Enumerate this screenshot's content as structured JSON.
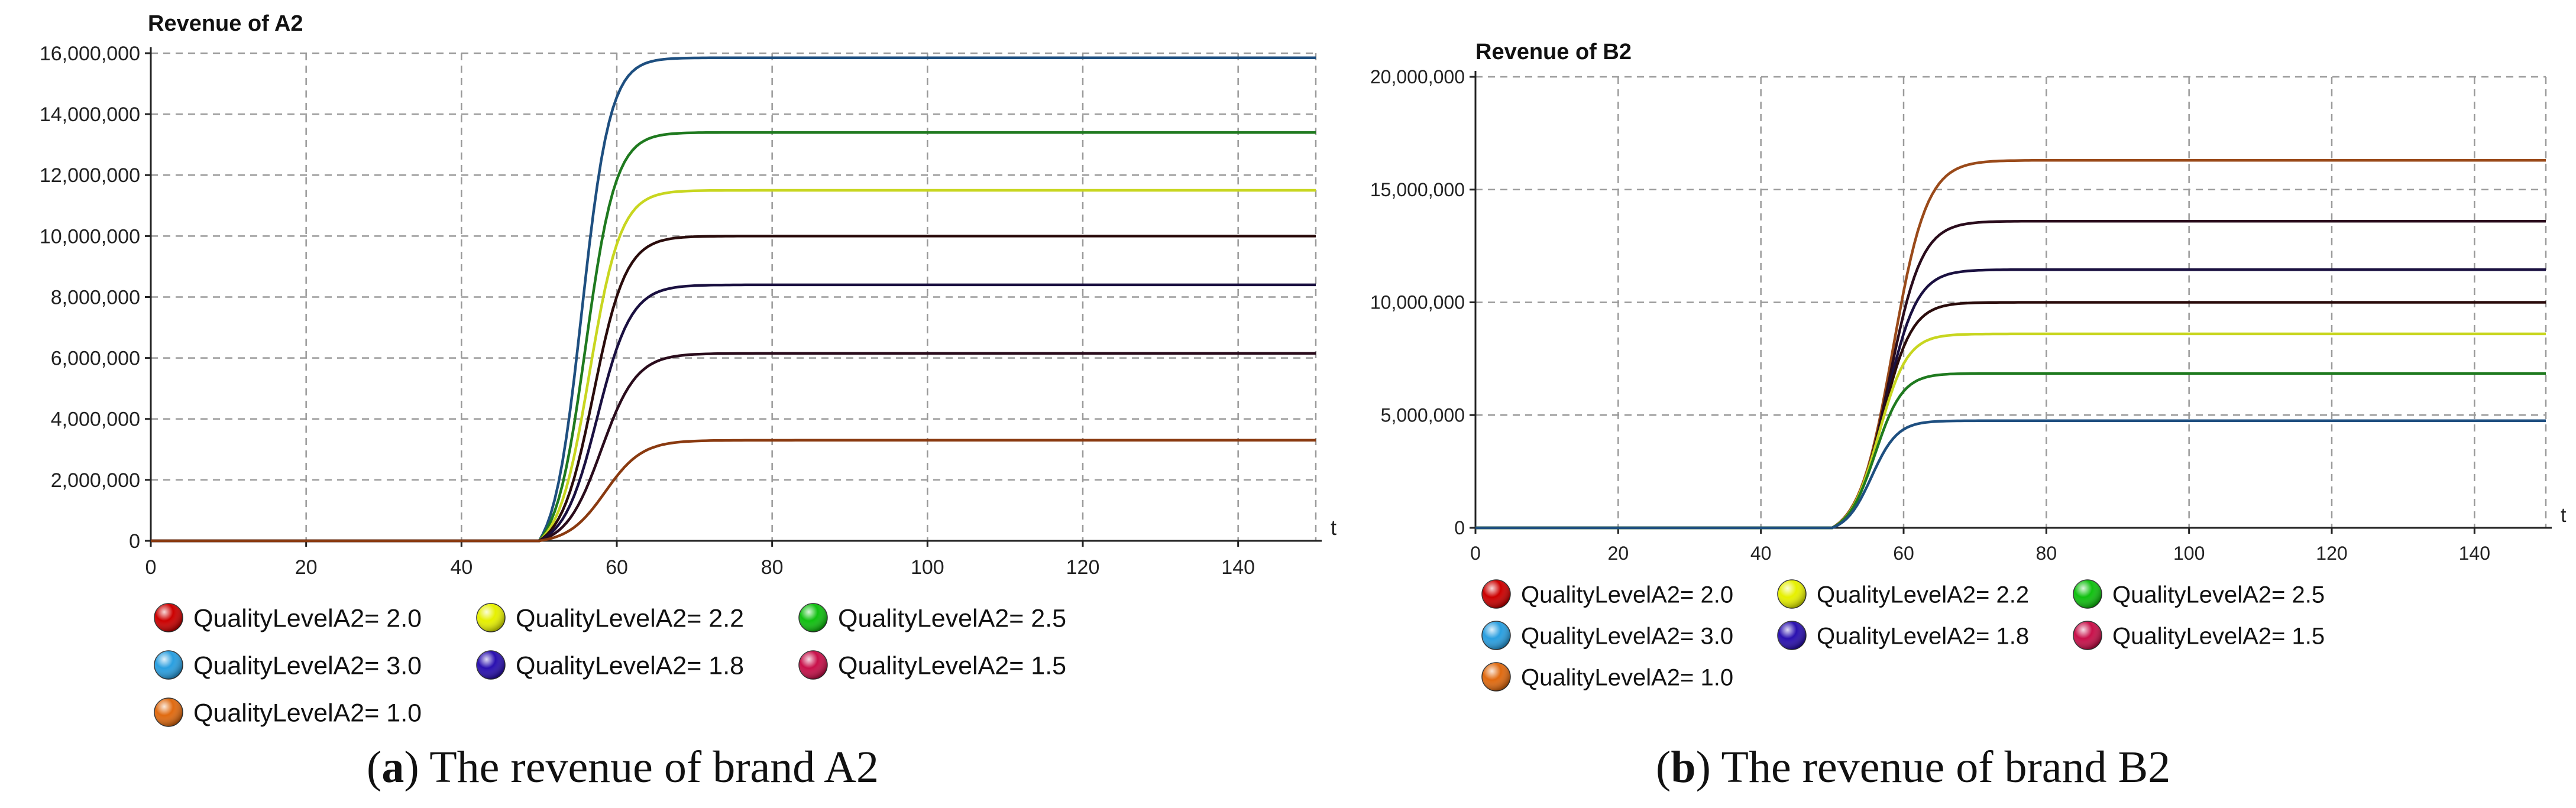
{
  "charts": [
    {
      "id": "a",
      "title": "Revenue of A2",
      "caption_letter": "a",
      "caption_text": "The revenue of brand A2",
      "x_label": "t",
      "x_ticks": [
        "0",
        "20",
        "40",
        "60",
        "80",
        "100",
        "120",
        "140"
      ],
      "y_ticks": [
        "0",
        "2,000,000",
        "4,000,000",
        "6,000,000",
        "8,000,000",
        "10,000,000",
        "12,000,000",
        "14,000,000",
        "16,000,000"
      ]
    },
    {
      "id": "b",
      "title": "Revenue of B2",
      "caption_letter": "b",
      "caption_text": "The revenue of brand B2",
      "x_label": "t",
      "x_ticks": [
        "0",
        "20",
        "40",
        "60",
        "80",
        "100",
        "120",
        "140"
      ],
      "y_ticks": [
        "0",
        "5,000,000",
        "10,000,000",
        "15,000,000",
        "20,000,000"
      ]
    }
  ],
  "legend": [
    {
      "label": "QualityLevelA2= 2.0",
      "color": "#cc0000"
    },
    {
      "label": "QualityLevelA2= 2.2",
      "color": "#e6f000"
    },
    {
      "label": "QualityLevelA2= 2.5",
      "color": "#10c010"
    },
    {
      "label": "QualityLevelA2= 3.0",
      "color": "#2a9fe0"
    },
    {
      "label": "QualityLevelA2= 1.8",
      "color": "#2a10b0"
    },
    {
      "label": "QualityLevelA2= 1.5",
      "color": "#c8104a"
    },
    {
      "label": "QualityLevelA2= 1.0",
      "color": "#e06a10"
    }
  ],
  "chart_data": [
    {
      "type": "line",
      "title": "Revenue of A2",
      "xlabel": "t",
      "ylabel": "",
      "xlim": [
        0,
        150
      ],
      "ylim": [
        0,
        16000000
      ],
      "grid": true,
      "legend_position": "bottom",
      "model": "sigmoid",
      "series": [
        {
          "name": "QualityLevelA2= 3.0",
          "color": "#1e4f80",
          "plateau": 15850000,
          "t_half": 55.5,
          "k": 0.55
        },
        {
          "name": "QualityLevelA2= 2.5",
          "color": "#1f7a1f",
          "plateau": 13400000,
          "t_half": 56.0,
          "k": 0.52
        },
        {
          "name": "QualityLevelA2= 2.2",
          "color": "#c8d620",
          "plateau": 11500000,
          "t_half": 56.5,
          "k": 0.5
        },
        {
          "name": "QualityLevelA2= 2.0",
          "color": "#2a0c0c",
          "plateau": 10000000,
          "t_half": 57.0,
          "k": 0.48
        },
        {
          "name": "QualityLevelA2= 1.8",
          "color": "#1a1040",
          "plateau": 8400000,
          "t_half": 57.5,
          "k": 0.46
        },
        {
          "name": "QualityLevelA2= 1.5",
          "color": "#2a0c1c",
          "plateau": 6150000,
          "t_half": 58.0,
          "k": 0.44
        },
        {
          "name": "QualityLevelA2= 1.0",
          "color": "#8a3a10",
          "plateau": 3300000,
          "t_half": 58.5,
          "k": 0.42
        }
      ]
    },
    {
      "type": "line",
      "title": "Revenue of B2",
      "xlabel": "t",
      "ylabel": "",
      "xlim": [
        0,
        150
      ],
      "ylim": [
        0,
        20000000
      ],
      "grid": true,
      "legend_position": "bottom",
      "model": "sigmoid",
      "series": [
        {
          "name": "QualityLevelA2= 1.0",
          "color": "#9a4a1a",
          "plateau": 16300000,
          "t_half": 58.5,
          "k": 0.42
        },
        {
          "name": "QualityLevelA2= 1.5",
          "color": "#2a0c1c",
          "plateau": 13600000,
          "t_half": 58.0,
          "k": 0.44
        },
        {
          "name": "QualityLevelA2= 1.8",
          "color": "#1a1040",
          "plateau": 11450000,
          "t_half": 57.5,
          "k": 0.46
        },
        {
          "name": "QualityLevelA2= 2.0",
          "color": "#2a0c0c",
          "plateau": 10000000,
          "t_half": 57.0,
          "k": 0.48
        },
        {
          "name": "QualityLevelA2= 2.2",
          "color": "#c8d620",
          "plateau": 8600000,
          "t_half": 56.5,
          "k": 0.5
        },
        {
          "name": "QualityLevelA2= 2.5",
          "color": "#1f7a1f",
          "plateau": 6850000,
          "t_half": 56.0,
          "k": 0.52
        },
        {
          "name": "QualityLevelA2= 3.0",
          "color": "#1e4f80",
          "plateau": 4750000,
          "t_half": 55.5,
          "k": 0.55
        }
      ]
    }
  ]
}
